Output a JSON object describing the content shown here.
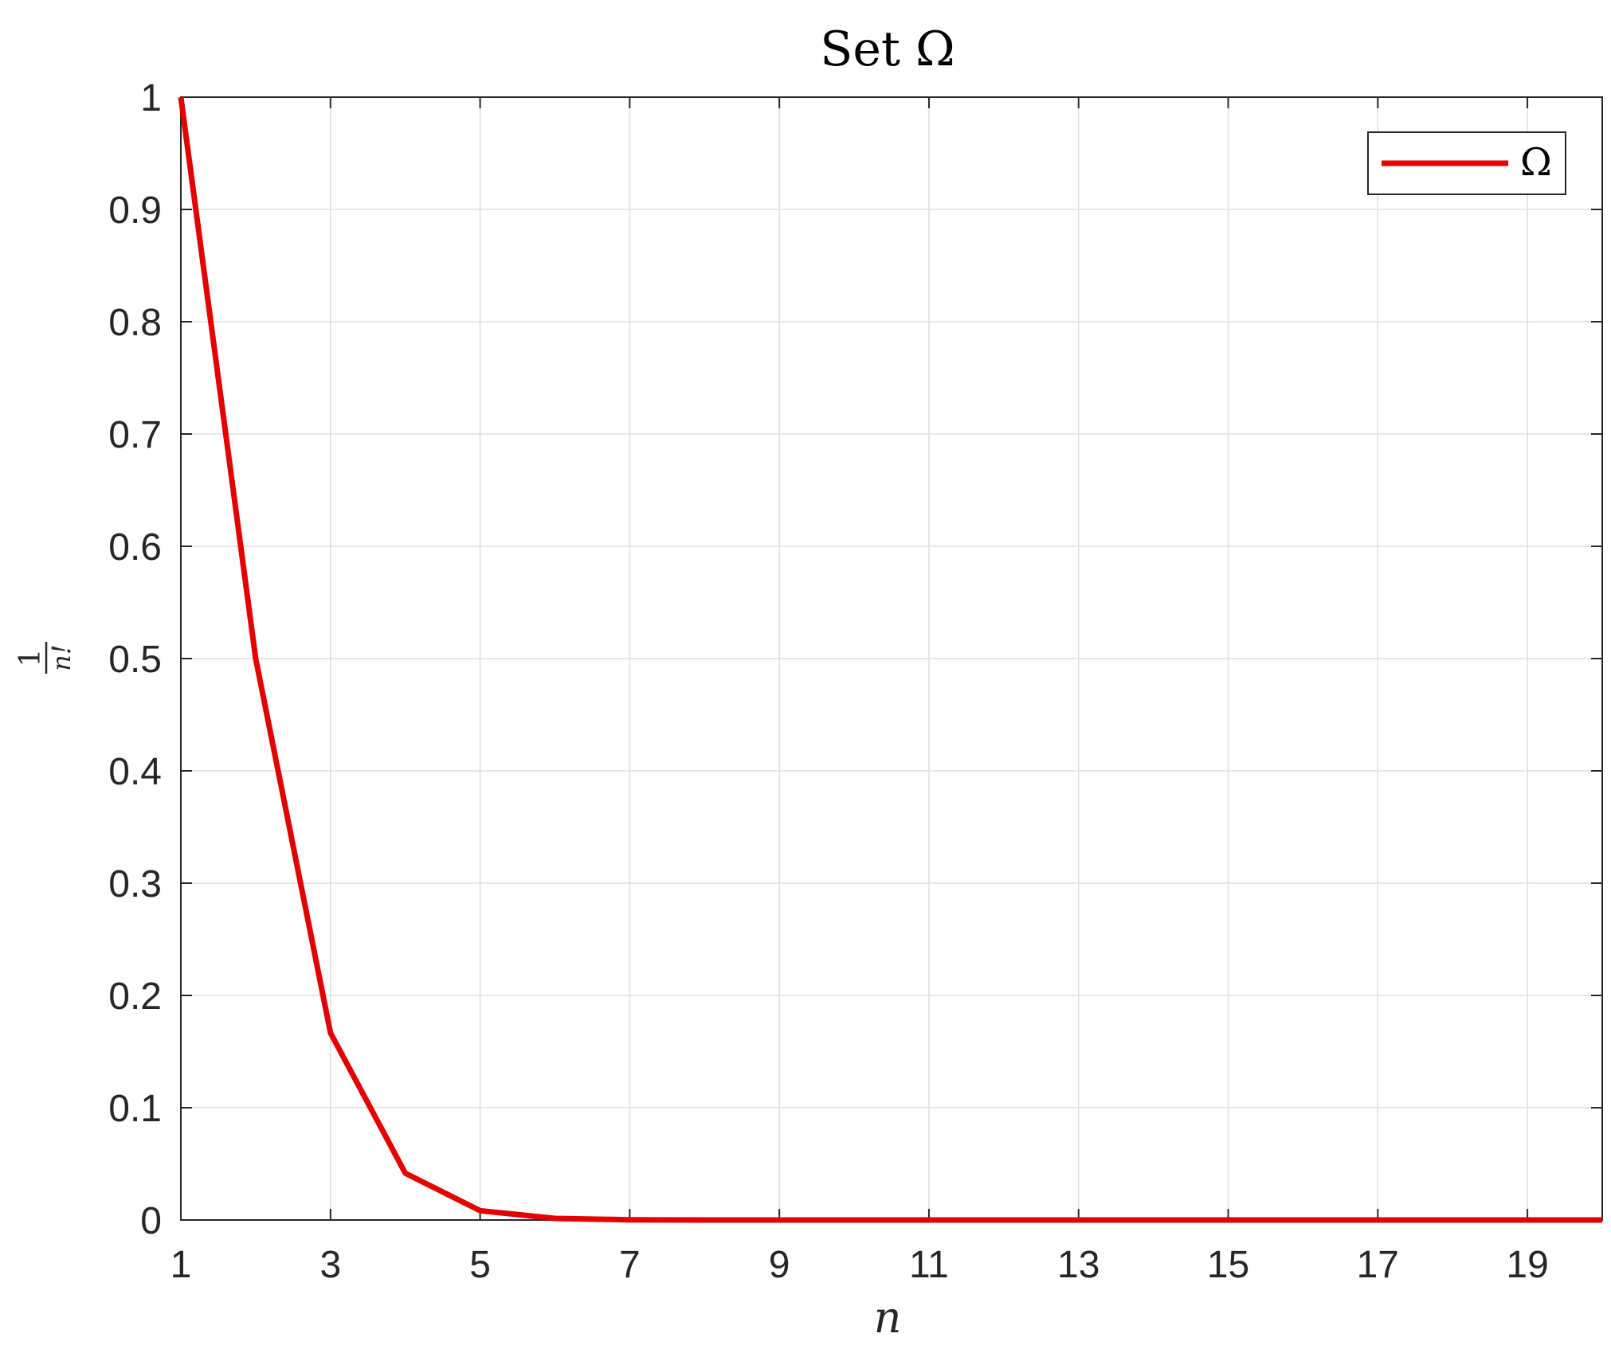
{
  "chart_data": {
    "type": "line",
    "title": "Set Ω",
    "xlabel": "n",
    "ylabel_numerator": "1",
    "ylabel_denominator": "n!",
    "xlim": [
      1,
      20
    ],
    "ylim": [
      0,
      1
    ],
    "xticks": [
      1,
      3,
      5,
      7,
      9,
      11,
      13,
      15,
      17,
      19
    ],
    "xtick_labels": [
      "1",
      "3",
      "5",
      "7",
      "9",
      "11",
      "13",
      "15",
      "17",
      "19"
    ],
    "yticks": [
      0,
      0.1,
      0.2,
      0.3,
      0.4,
      0.5,
      0.6,
      0.7,
      0.8,
      0.9,
      1
    ],
    "ytick_labels": [
      "0",
      "0.1",
      "0.2",
      "0.3",
      "0.4",
      "0.5",
      "0.6",
      "0.7",
      "0.8",
      "0.9",
      "1"
    ],
    "grid": true,
    "legend_position": "top-right",
    "series": [
      {
        "name": "Ω",
        "color": "#e50000",
        "x": [
          1,
          2,
          3,
          4,
          5,
          6,
          7,
          8,
          9,
          10,
          11,
          12,
          13,
          14,
          15,
          16,
          17,
          18,
          19,
          20
        ],
        "y": [
          1,
          0.5,
          0.1667,
          0.0417,
          0.0083,
          0.0014,
          0.0002,
          2.48e-05,
          2.8e-06,
          2.8e-07,
          0,
          0,
          0,
          0,
          0,
          0,
          0,
          0,
          0,
          0
        ]
      }
    ]
  }
}
